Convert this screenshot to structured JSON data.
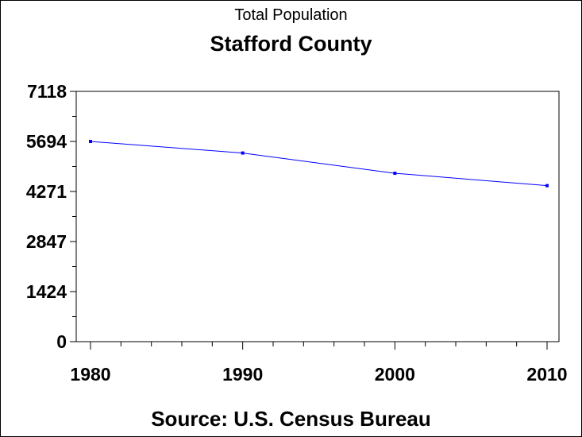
{
  "header": {
    "title": "Total Population",
    "subtitle": "Stafford County"
  },
  "footer": {
    "source": "Source: U.S. Census Bureau"
  },
  "colors": {
    "line": "#0000ff",
    "axis": "#000000"
  },
  "chart_data": {
    "type": "line",
    "title": "Total Population",
    "subtitle": "Stafford County",
    "xlabel": "",
    "ylabel": "",
    "x": [
      1980,
      1990,
      2000,
      2010
    ],
    "x_tick_labels": [
      "1980",
      "1990",
      "2000",
      "2010"
    ],
    "xlim": [
      1980,
      2010
    ],
    "y_ticks": [
      0,
      1424,
      2847,
      4271,
      5694,
      7118
    ],
    "y_tick_labels": [
      "0",
      "1424",
      "2847",
      "4271",
      "5694",
      "7118"
    ],
    "ylim": [
      0,
      7118
    ],
    "grid": false,
    "series": [
      {
        "values": [
          5694,
          5365,
          4789,
          4437
        ]
      }
    ]
  }
}
